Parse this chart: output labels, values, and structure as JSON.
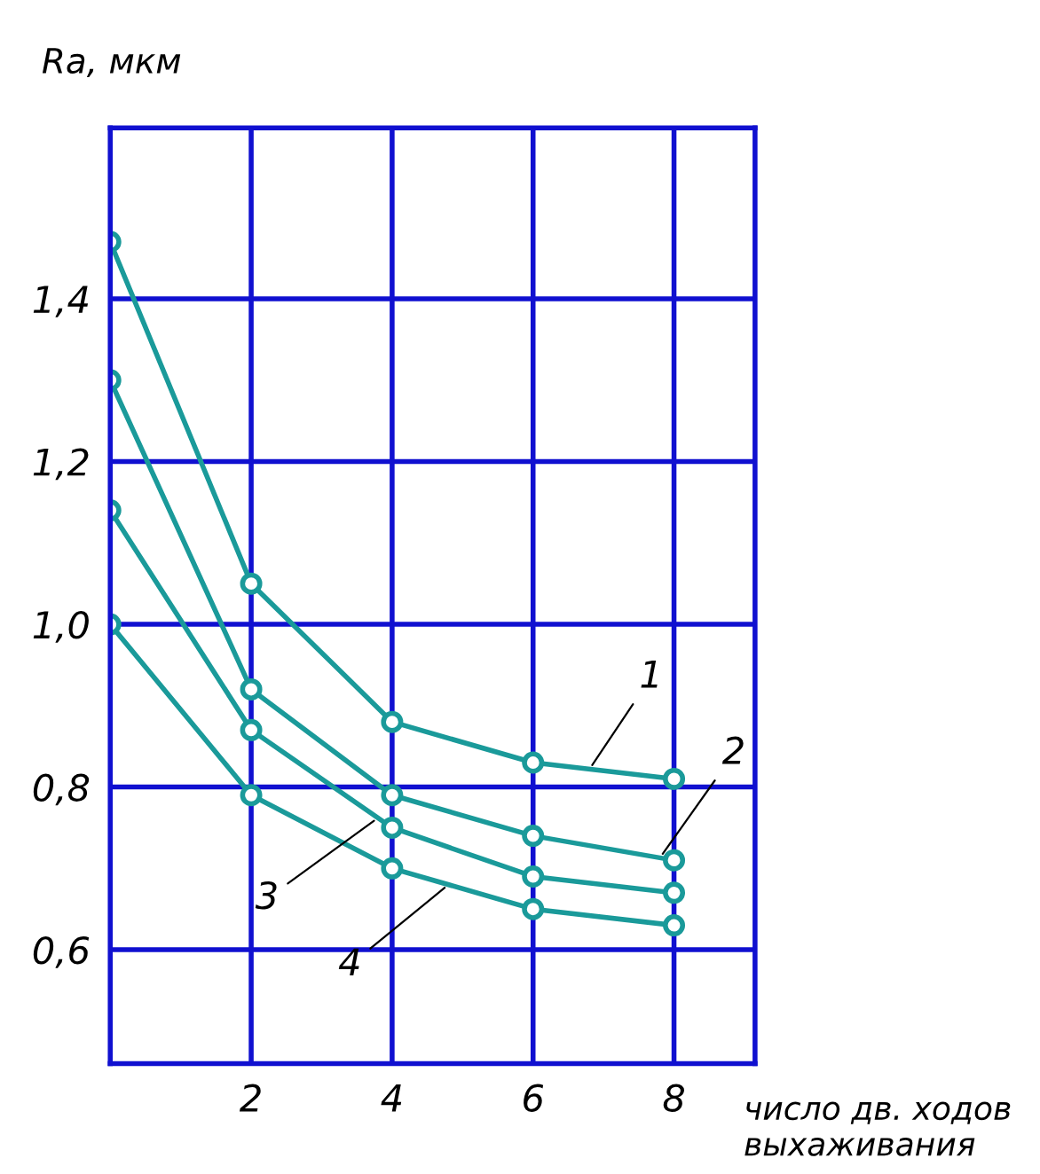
{
  "chart_data": {
    "type": "line",
    "ylabel": "Rа, мкм",
    "xlabel": "число дв. ходов\nвыхаживания",
    "x": [
      0,
      2,
      4,
      6,
      8
    ],
    "series": [
      {
        "name": "1",
        "color": "#1a9a9a",
        "values": [
          1.47,
          1.05,
          0.88,
          0.83,
          0.81
        ]
      },
      {
        "name": "2",
        "color": "#1a9a9a",
        "values": [
          1.3,
          0.92,
          0.79,
          0.74,
          0.71
        ]
      },
      {
        "name": "3",
        "color": "#1a9a9a",
        "values": [
          1.14,
          0.87,
          0.75,
          0.69,
          0.67
        ]
      },
      {
        "name": "4",
        "color": "#1a9a9a",
        "values": [
          1.0,
          0.79,
          0.7,
          0.65,
          0.63
        ]
      }
    ],
    "xlim": [
      0,
      9.15
    ],
    "ylim": [
      0.46,
      1.61
    ],
    "xticks": [
      2,
      4,
      6,
      8
    ],
    "yticks": [
      {
        "value": 0.6,
        "label": "0,6"
      },
      {
        "value": 0.8,
        "label": "0,8"
      },
      {
        "value": 1.0,
        "label": "1,0"
      },
      {
        "value": 1.2,
        "label": "1,2"
      },
      {
        "value": 1.4,
        "label": "1,4"
      }
    ],
    "grid": true,
    "marker": "circle",
    "line_style": "solid",
    "legend": false
  }
}
